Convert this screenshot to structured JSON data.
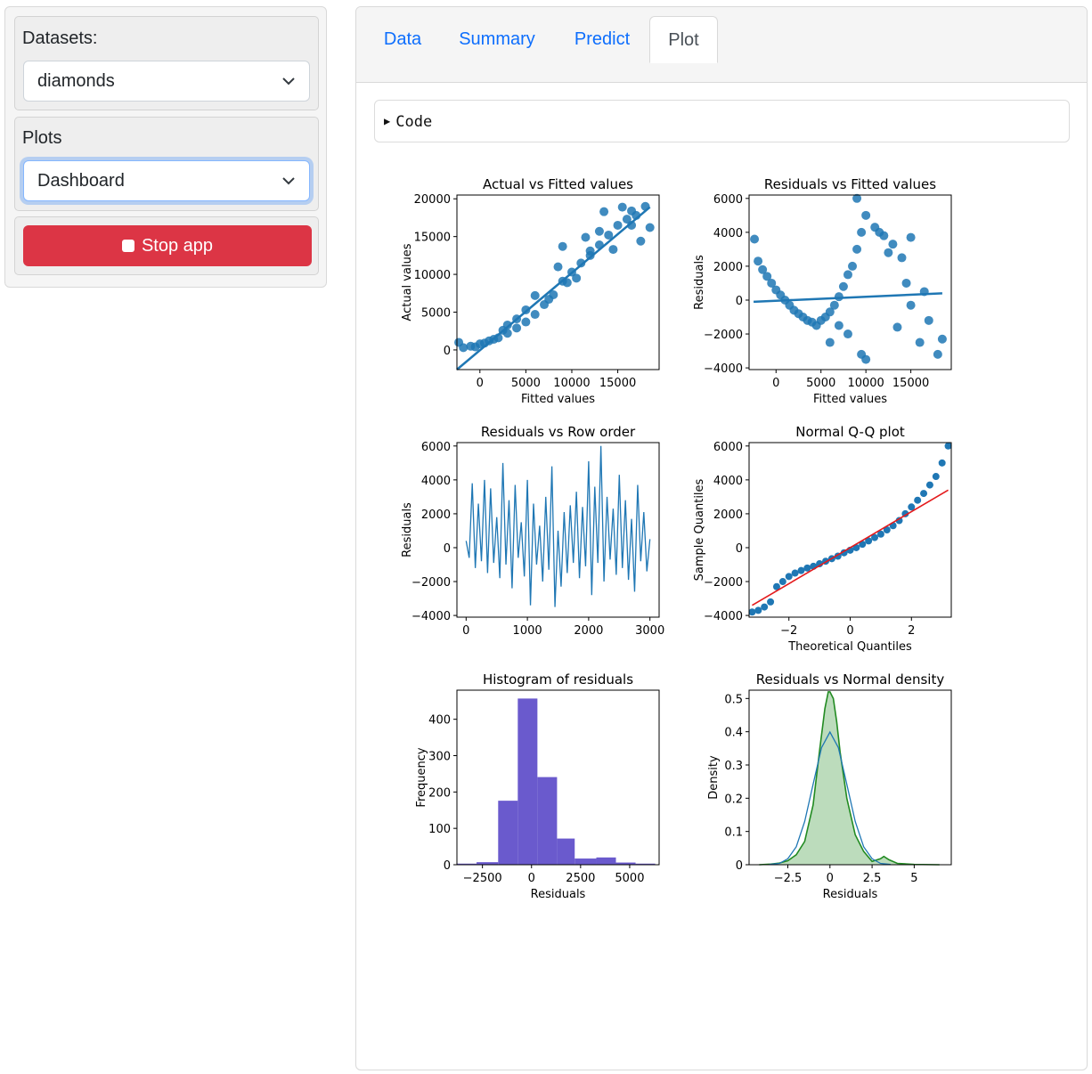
{
  "sidebar": {
    "datasets_label": "Datasets:",
    "dataset_value": "diamonds",
    "plots_label": "Plots",
    "plot_value": "Dashboard",
    "stop_button": "Stop app"
  },
  "tabs": [
    {
      "label": "Data",
      "active": false
    },
    {
      "label": "Summary",
      "active": false
    },
    {
      "label": "Predict",
      "active": false
    },
    {
      "label": "Plot",
      "active": true
    }
  ],
  "code_toggle": "Code",
  "colors": {
    "accent": "#0d6efd",
    "danger": "#dc3545",
    "series": "#1f77b4",
    "hist": "#6a5acd",
    "density": "#228b22",
    "qq_line": "#e41a1c"
  },
  "chart_data": [
    {
      "type": "scatter",
      "title": "Actual vs Fitted values",
      "xlabel": "Fitted values",
      "ylabel": "Actual values",
      "xticks": [
        0,
        5000,
        10000,
        15000
      ],
      "yticks": [
        0,
        5000,
        10000,
        15000,
        20000
      ],
      "xlim": [
        -2500,
        19500
      ],
      "ylim": [
        -2600,
        20500
      ],
      "regression_line": [
        [
          -2500,
          -2600
        ],
        [
          18500,
          18900
        ]
      ],
      "points": [
        [
          -2300,
          1000
        ],
        [
          -1800,
          300
        ],
        [
          -1000,
          500
        ],
        [
          0,
          800
        ],
        [
          1000,
          1200
        ],
        [
          2000,
          1600
        ],
        [
          3000,
          2200
        ],
        [
          4000,
          2900
        ],
        [
          5000,
          3700
        ],
        [
          6000,
          4700
        ],
        [
          7000,
          6000
        ],
        [
          8000,
          7300
        ],
        [
          9000,
          9100
        ],
        [
          10000,
          10300
        ],
        [
          11000,
          11500
        ],
        [
          12000,
          12500
        ],
        [
          13000,
          13900
        ],
        [
          14000,
          15200
        ],
        [
          15000,
          16500
        ],
        [
          16000,
          17300
        ],
        [
          17000,
          17800
        ],
        [
          18000,
          19000
        ],
        [
          13500,
          18300
        ],
        [
          16500,
          16500
        ],
        [
          9000,
          13700
        ],
        [
          8500,
          11000
        ],
        [
          6000,
          7200
        ],
        [
          5000,
          5300
        ],
        [
          4000,
          4100
        ],
        [
          11500,
          14900
        ],
        [
          17500,
          14400
        ],
        [
          18500,
          16200
        ],
        [
          15500,
          18900
        ],
        [
          12000,
          13100
        ],
        [
          10500,
          9500
        ],
        [
          7500,
          6700
        ],
        [
          3000,
          3300
        ],
        [
          2500,
          2600
        ],
        [
          1500,
          1400
        ],
        [
          500,
          900
        ],
        [
          -500,
          400
        ],
        [
          9500,
          8900
        ],
        [
          14500,
          13300
        ],
        [
          13000,
          15700
        ],
        [
          16500,
          18400
        ]
      ]
    },
    {
      "type": "scatter",
      "title": "Residuals vs Fitted values",
      "xlabel": "Fitted values",
      "ylabel": "Residuals",
      "xticks": [
        0,
        5000,
        10000,
        15000
      ],
      "yticks": [
        -4000,
        -2000,
        0,
        2000,
        4000,
        6000
      ],
      "xlim": [
        -3000,
        19500
      ],
      "ylim": [
        -4100,
        6200
      ],
      "regression_line": [
        [
          -2500,
          -100
        ],
        [
          18500,
          400
        ]
      ],
      "points": [
        [
          -2400,
          3600
        ],
        [
          -2000,
          2300
        ],
        [
          -1500,
          1800
        ],
        [
          -1000,
          1400
        ],
        [
          -500,
          1000
        ],
        [
          0,
          600
        ],
        [
          500,
          300
        ],
        [
          1000,
          0
        ],
        [
          1500,
          -300
        ],
        [
          2000,
          -600
        ],
        [
          2500,
          -800
        ],
        [
          3000,
          -1000
        ],
        [
          3500,
          -1200
        ],
        [
          4000,
          -1300
        ],
        [
          4500,
          -1500
        ],
        [
          5000,
          -1200
        ],
        [
          5500,
          -1000
        ],
        [
          6000,
          -700
        ],
        [
          6500,
          -300
        ],
        [
          7000,
          200
        ],
        [
          7500,
          800
        ],
        [
          8000,
          1500
        ],
        [
          8500,
          2000
        ],
        [
          9000,
          3000
        ],
        [
          9500,
          4000
        ],
        [
          10000,
          5000
        ],
        [
          11000,
          4300
        ],
        [
          12000,
          3800
        ],
        [
          13000,
          3300
        ],
        [
          14000,
          2500
        ],
        [
          15000,
          3700
        ],
        [
          16000,
          -2500
        ],
        [
          17000,
          -1200
        ],
        [
          18000,
          -3200
        ],
        [
          18500,
          -2300
        ],
        [
          9000,
          6000
        ],
        [
          10000,
          -3500
        ],
        [
          9500,
          -3200
        ],
        [
          11500,
          4000
        ],
        [
          12500,
          2800
        ],
        [
          8000,
          -2000
        ],
        [
          6000,
          -2500
        ],
        [
          7000,
          -1500
        ],
        [
          13500,
          -1600
        ],
        [
          14500,
          1000
        ],
        [
          15000,
          -300
        ],
        [
          16500,
          500
        ]
      ]
    },
    {
      "type": "line",
      "title": "Residuals vs Row order",
      "xlabel": "",
      "ylabel": "Residuals",
      "xticks": [
        0,
        1000,
        2000,
        3000
      ],
      "yticks": [
        -4000,
        -2000,
        0,
        2000,
        4000,
        6000
      ],
      "xlim": [
        -150,
        3150
      ],
      "ylim": [
        -4100,
        6200
      ],
      "x": [
        0,
        50,
        100,
        150,
        200,
        250,
        300,
        350,
        400,
        450,
        500,
        550,
        600,
        650,
        700,
        750,
        800,
        850,
        900,
        950,
        1000,
        1050,
        1100,
        1150,
        1200,
        1250,
        1300,
        1350,
        1400,
        1450,
        1500,
        1550,
        1600,
        1650,
        1700,
        1750,
        1800,
        1850,
        1900,
        1950,
        2000,
        2050,
        2100,
        2150,
        2200,
        2250,
        2300,
        2350,
        2400,
        2450,
        2500,
        2550,
        2600,
        2650,
        2700,
        2750,
        2800,
        2850,
        2900,
        2950,
        3000
      ],
      "values": [
        400,
        -600,
        3800,
        -1200,
        2600,
        -800,
        4000,
        -1500,
        3500,
        -900,
        1800,
        -1800,
        5000,
        -1000,
        2800,
        -2400,
        3700,
        -600,
        1500,
        -1700,
        4000,
        -3400,
        2600,
        -1000,
        1300,
        -2000,
        3000,
        -1300,
        4800,
        -3500,
        1000,
        -2300,
        2100,
        -1500,
        2500,
        -900,
        3300,
        -1800,
        2400,
        -1100,
        5100,
        -2800,
        3600,
        -900,
        6000,
        -2000,
        3000,
        -700,
        2300,
        -1600,
        4300,
        -1200,
        2800,
        -1900,
        1700,
        -2600,
        3700,
        -800,
        2100,
        -1400,
        500
      ]
    },
    {
      "type": "scatter",
      "title": "Normal Q-Q plot",
      "xlabel": "Theoretical Quantiles",
      "ylabel": "Sample Quantiles",
      "xticks": [
        -2,
        0,
        2
      ],
      "yticks": [
        -4000,
        -2000,
        0,
        2000,
        4000,
        6000
      ],
      "xlim": [
        -3.3,
        3.3
      ],
      "ylim": [
        -4100,
        6200
      ],
      "reference_line": [
        [
          -3.2,
          -3400
        ],
        [
          3.2,
          3400
        ]
      ],
      "points": [
        [
          -3.2,
          -3800
        ],
        [
          -3.0,
          -3700
        ],
        [
          -2.8,
          -3500
        ],
        [
          -2.6,
          -3200
        ],
        [
          -2.4,
          -2300
        ],
        [
          -2.2,
          -2000
        ],
        [
          -2.0,
          -1700
        ],
        [
          -1.8,
          -1500
        ],
        [
          -1.6,
          -1350
        ],
        [
          -1.4,
          -1200
        ],
        [
          -1.2,
          -1100
        ],
        [
          -1.0,
          -950
        ],
        [
          -0.8,
          -800
        ],
        [
          -0.6,
          -650
        ],
        [
          -0.4,
          -500
        ],
        [
          -0.2,
          -300
        ],
        [
          0.0,
          -150
        ],
        [
          0.2,
          0
        ],
        [
          0.4,
          200
        ],
        [
          0.6,
          400
        ],
        [
          0.8,
          600
        ],
        [
          1.0,
          800
        ],
        [
          1.2,
          1050
        ],
        [
          1.4,
          1300
        ],
        [
          1.6,
          1600
        ],
        [
          1.8,
          2000
        ],
        [
          2.0,
          2400
        ],
        [
          2.2,
          2800
        ],
        [
          2.4,
          3200
        ],
        [
          2.6,
          3700
        ],
        [
          2.8,
          4200
        ],
        [
          3.0,
          5000
        ],
        [
          3.2,
          6000
        ]
      ]
    },
    {
      "type": "bar",
      "title": "Histogram of residuals",
      "xlabel": "Residuals",
      "ylabel": "Frequency",
      "xticks": [
        -2500,
        0,
        2500,
        5000
      ],
      "yticks": [
        0,
        100,
        200,
        300,
        400
      ],
      "xlim": [
        -3800,
        6500
      ],
      "ylim": [
        0,
        480
      ],
      "bin_edges": [
        -3800,
        -2800,
        -1700,
        -700,
        300,
        1300,
        2200,
        3300,
        4300,
        5300,
        6300
      ],
      "values": [
        3,
        7,
        176,
        457,
        241,
        72,
        17,
        20,
        6,
        3
      ]
    },
    {
      "type": "line",
      "title": "Residuals vs Normal density",
      "xlabel": "Residuals",
      "ylabel": "Density",
      "xticks": [
        -2.5,
        0.0,
        2.5,
        5.0
      ],
      "yticks": [
        0.0,
        0.1,
        0.2,
        0.3,
        0.4,
        0.5
      ],
      "xlim": [
        -4.8,
        7.2
      ],
      "ylim": [
        0,
        0.525
      ],
      "series": [
        {
          "kind": "kde",
          "x": [
            -4.2,
            -3.5,
            -3.0,
            -2.5,
            -2.0,
            -1.5,
            -1.0,
            -0.6,
            -0.3,
            -0.1,
            0.0,
            0.2,
            0.4,
            0.6,
            1.0,
            1.5,
            2.0,
            2.5,
            3.0,
            3.2,
            3.5,
            4.0,
            5.0,
            6.5
          ],
          "values": [
            0.0,
            0.002,
            0.005,
            0.012,
            0.03,
            0.07,
            0.18,
            0.35,
            0.47,
            0.52,
            0.52,
            0.5,
            0.43,
            0.34,
            0.2,
            0.09,
            0.04,
            0.01,
            0.018,
            0.025,
            0.015,
            0.004,
            0.001,
            0.0
          ]
        },
        {
          "kind": "normal",
          "x": [
            -3.6,
            -3.0,
            -2.5,
            -2.0,
            -1.5,
            -1.0,
            -0.5,
            0.0,
            0.5,
            1.0,
            1.5,
            2.0,
            2.5,
            3.0,
            3.6
          ],
          "values": [
            0.001,
            0.004,
            0.018,
            0.054,
            0.13,
            0.242,
            0.352,
            0.399,
            0.352,
            0.242,
            0.13,
            0.054,
            0.018,
            0.004,
            0.001
          ]
        }
      ]
    }
  ]
}
